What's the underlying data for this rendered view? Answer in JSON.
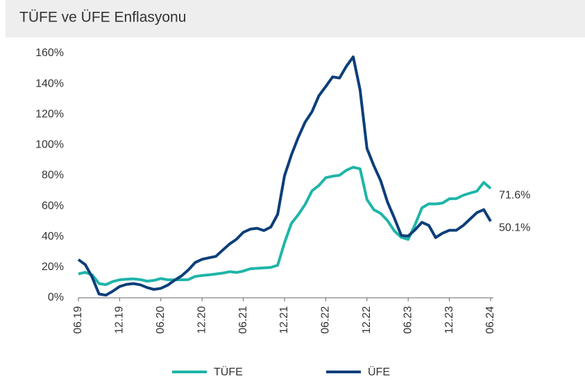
{
  "chart_data": {
    "type": "line",
    "title": "TÜFE ve ÜFE Enflasyonu",
    "categories": [
      "06.19",
      null,
      null,
      null,
      null,
      null,
      "12.19",
      null,
      null,
      null,
      null,
      null,
      "06.20",
      null,
      null,
      null,
      null,
      null,
      "12.20",
      null,
      null,
      null,
      null,
      null,
      "06.21",
      null,
      null,
      null,
      null,
      null,
      "12.21",
      null,
      null,
      null,
      null,
      null,
      "06.22",
      null,
      null,
      null,
      null,
      null,
      "12.22",
      null,
      null,
      null,
      null,
      null,
      "06.23",
      null,
      null,
      null,
      null,
      null,
      "12.23",
      null,
      null,
      null,
      null,
      null,
      "06.24"
    ],
    "series": [
      {
        "name": "TÜFE",
        "color": "#1fb5a8",
        "values": [
          15.7,
          16.7,
          15.0,
          9.3,
          8.6,
          10.6,
          11.8,
          12.2,
          12.4,
          11.9,
          10.9,
          11.4,
          12.6,
          11.8,
          11.8,
          11.8,
          11.9,
          14.0,
          14.6,
          15.0,
          15.6,
          16.2,
          17.1,
          16.6,
          17.5,
          19.0,
          19.3,
          19.6,
          19.9,
          21.3,
          36.1,
          48.7,
          54.4,
          61.1,
          70.0,
          73.5,
          78.6,
          79.6,
          80.2,
          83.5,
          85.5,
          84.4,
          64.3,
          57.7,
          55.2,
          50.5,
          43.7,
          39.6,
          38.2,
          47.8,
          58.9,
          61.5,
          61.4,
          62.0,
          64.8,
          64.9,
          67.1,
          68.5,
          69.8,
          75.5,
          71.6
        ],
        "value_labels": [
          null,
          null,
          null,
          null,
          null,
          null,
          null,
          null,
          null,
          null,
          null,
          null,
          null,
          null,
          null,
          null,
          null,
          null,
          null,
          null,
          null,
          null,
          null,
          null,
          null,
          null,
          null,
          null,
          null,
          null,
          null,
          null,
          null,
          null,
          null,
          null,
          null,
          null,
          null,
          null,
          null,
          null,
          null,
          null,
          null,
          null,
          null,
          null,
          null,
          null,
          null,
          null,
          null,
          null,
          null,
          null,
          null,
          null,
          null,
          null,
          "71.6%"
        ]
      },
      {
        "name": "ÜFE",
        "color": "#0c3e7a",
        "values": [
          25.0,
          21.7,
          13.5,
          2.5,
          1.7,
          4.3,
          7.4,
          8.8,
          9.3,
          8.5,
          6.7,
          5.5,
          6.2,
          8.3,
          11.5,
          14.3,
          18.2,
          23.1,
          25.2,
          26.2,
          27.1,
          31.2,
          35.2,
          38.3,
          42.9,
          44.9,
          45.5,
          44.0,
          46.3,
          54.6,
          79.9,
          93.5,
          105.0,
          115.0,
          121.8,
          132.2,
          138.3,
          144.6,
          143.8,
          151.5,
          157.7,
          136.0,
          97.7,
          86.5,
          76.6,
          62.5,
          52.1,
          40.8,
          40.4,
          44.5,
          49.4,
          47.4,
          39.4,
          42.3,
          44.2,
          44.2,
          47.3,
          51.5,
          55.7,
          57.7,
          50.1
        ],
        "value_labels": [
          null,
          null,
          null,
          null,
          null,
          null,
          null,
          null,
          null,
          null,
          null,
          null,
          null,
          null,
          null,
          null,
          null,
          null,
          null,
          null,
          null,
          null,
          null,
          null,
          null,
          null,
          null,
          null,
          null,
          null,
          null,
          null,
          null,
          null,
          null,
          null,
          null,
          null,
          null,
          null,
          null,
          null,
          null,
          null,
          null,
          null,
          null,
          null,
          null,
          null,
          null,
          null,
          null,
          null,
          null,
          null,
          null,
          null,
          null,
          null,
          "50.1%"
        ]
      }
    ],
    "ylim": [
      0,
      160
    ],
    "yticks": [
      {
        "value": 0,
        "label": "0%"
      },
      {
        "value": 20,
        "label": "20%"
      },
      {
        "value": 40,
        "label": "40%"
      },
      {
        "value": 60,
        "label": "60%"
      },
      {
        "value": 80,
        "label": "80%"
      },
      {
        "value": 100,
        "label": "100%"
      },
      {
        "value": 120,
        "label": "120%"
      },
      {
        "value": 140,
        "label": "140%"
      },
      {
        "value": 160,
        "label": "160%"
      }
    ],
    "grid": false,
    "legend": "bottom"
  }
}
